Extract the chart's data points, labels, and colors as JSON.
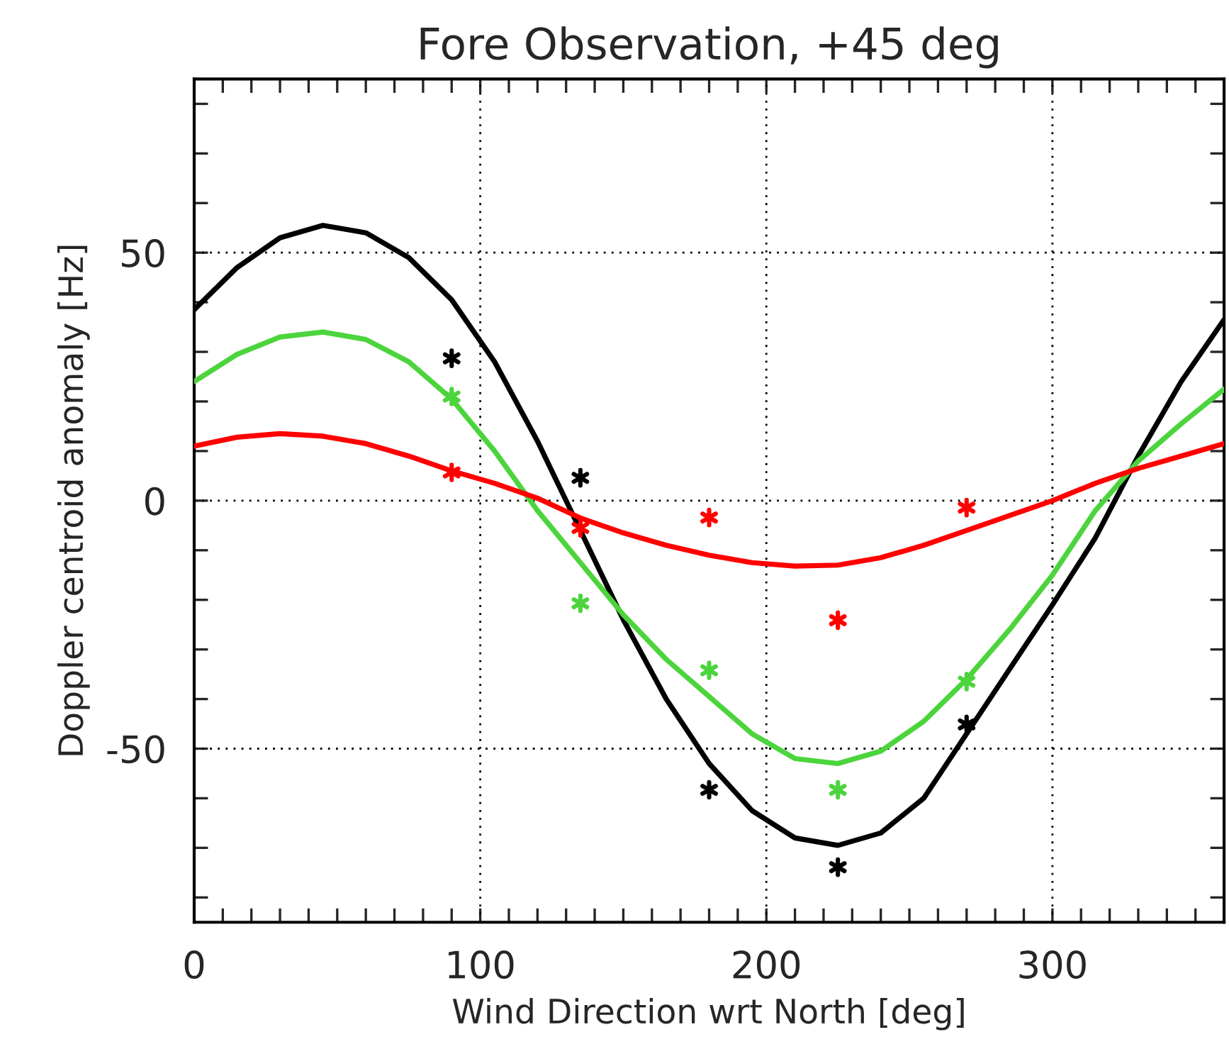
{
  "chart_data": {
    "type": "line",
    "title": "Fore Observation, +45 deg",
    "xlabel": "Wind Direction wrt North [deg]",
    "ylabel": "Doppler centroid anomaly [Hz]",
    "xlim": [
      0,
      360
    ],
    "ylim": [
      -85,
      85
    ],
    "xticks": [
      0,
      {
        "value": 10,
        "label": null
      },
      {
        "value": 20,
        "label": null
      },
      {
        "value": 30,
        "label": null
      },
      {
        "value": 40,
        "label": null
      },
      {
        "value": 50,
        "label": null
      },
      {
        "value": 60,
        "label": null
      },
      {
        "value": 70,
        "label": null
      },
      {
        "value": 80,
        "label": null
      },
      {
        "value": 90,
        "label": null
      },
      100,
      {
        "value": 110,
        "label": null
      },
      {
        "value": 120,
        "label": null
      },
      {
        "value": 130,
        "label": null
      },
      {
        "value": 140,
        "label": null
      },
      {
        "value": 150,
        "label": null
      },
      {
        "value": 160,
        "label": null
      },
      {
        "value": 170,
        "label": null
      },
      {
        "value": 180,
        "label": null
      },
      {
        "value": 190,
        "label": null
      },
      200,
      {
        "value": 210,
        "label": null
      },
      {
        "value": 220,
        "label": null
      },
      {
        "value": 230,
        "label": null
      },
      {
        "value": 240,
        "label": null
      },
      {
        "value": 250,
        "label": null
      },
      {
        "value": 260,
        "label": null
      },
      {
        "value": 270,
        "label": null
      },
      {
        "value": 280,
        "label": null
      },
      {
        "value": 290,
        "label": null
      },
      300,
      {
        "value": 310,
        "label": null
      },
      {
        "value": 320,
        "label": null
      },
      {
        "value": 330,
        "label": null
      },
      {
        "value": 340,
        "label": null
      },
      {
        "value": 350,
        "label": null
      }
    ],
    "yticks": [
      {
        "value": -80,
        "label": null
      },
      {
        "value": -70,
        "label": null
      },
      {
        "value": -60,
        "label": null
      },
      -50,
      {
        "value": -40,
        "label": null
      },
      {
        "value": -30,
        "label": null
      },
      {
        "value": -20,
        "label": null
      },
      {
        "value": -10,
        "label": null
      },
      0,
      {
        "value": 10,
        "label": null
      },
      {
        "value": 20,
        "label": null
      },
      {
        "value": 30,
        "label": null
      },
      {
        "value": 40,
        "label": null
      },
      50,
      {
        "value": 60,
        "label": null
      },
      {
        "value": 70,
        "label": null
      },
      {
        "value": 80,
        "label": null
      }
    ],
    "grid": true,
    "line_style": "solid",
    "series": [
      {
        "color": "#000000",
        "x": [
          0,
          15,
          30,
          45,
          60,
          75,
          90,
          105,
          120,
          135,
          150,
          165,
          180,
          195,
          210,
          225,
          240,
          255,
          270,
          285,
          300,
          315,
          330,
          345,
          360
        ],
        "values": [
          38.5,
          47,
          53,
          55.5,
          54,
          49,
          40.5,
          28,
          12,
          -6,
          -24,
          -40,
          -53,
          -62.5,
          -68,
          -69.5,
          -67,
          -60,
          -47,
          -34,
          -21,
          -7.5,
          9,
          24,
          36.5
        ]
      },
      {
        "color": "#4cd43c",
        "x": [
          0,
          15,
          30,
          45,
          60,
          75,
          90,
          105,
          120,
          135,
          150,
          165,
          180,
          195,
          210,
          225,
          240,
          255,
          270,
          285,
          300,
          315,
          330,
          345,
          360
        ],
        "values": [
          24,
          29.5,
          33,
          34,
          32.5,
          28,
          20.5,
          10,
          -2,
          -12.5,
          -23,
          -32,
          -39.5,
          -47,
          -52,
          -53,
          -50.5,
          -44.5,
          -36,
          -26,
          -15,
          -2,
          8,
          15.5,
          22.5
        ]
      },
      {
        "color": "#ff0000",
        "x": [
          0,
          15,
          30,
          45,
          60,
          75,
          90,
          105,
          120,
          135,
          150,
          165,
          180,
          195,
          210,
          225,
          240,
          255,
          270,
          285,
          300,
          315,
          330,
          345,
          360
        ],
        "values": [
          11,
          12.8,
          13.5,
          13,
          11.5,
          9,
          6,
          3.5,
          0.5,
          -3.5,
          -6.5,
          -9,
          -11,
          -12.5,
          -13.2,
          -13,
          -11.5,
          -9,
          -6,
          -3,
          0,
          3.5,
          6.5,
          9,
          11.5
        ]
      },
      {
        "type": "scatter",
        "marker": "cross",
        "color": "#000000",
        "x": [
          90,
          135,
          180,
          225,
          270
        ],
        "values": [
          28.7,
          4.6,
          -58.3,
          -73.9,
          -45.1
        ]
      },
      {
        "type": "scatter",
        "marker": "cross",
        "color": "#4cd43c",
        "x": [
          90,
          135,
          180,
          225,
          270
        ],
        "values": [
          21,
          -20.7,
          -34.2,
          -58.3,
          -36.5
        ]
      },
      {
        "type": "scatter",
        "marker": "cross",
        "color": "#ff0000",
        "x": [
          90,
          135,
          180,
          225,
          270
        ],
        "values": [
          5.7,
          -5.5,
          -3.4,
          -24.1,
          -1.4
        ]
      }
    ]
  }
}
